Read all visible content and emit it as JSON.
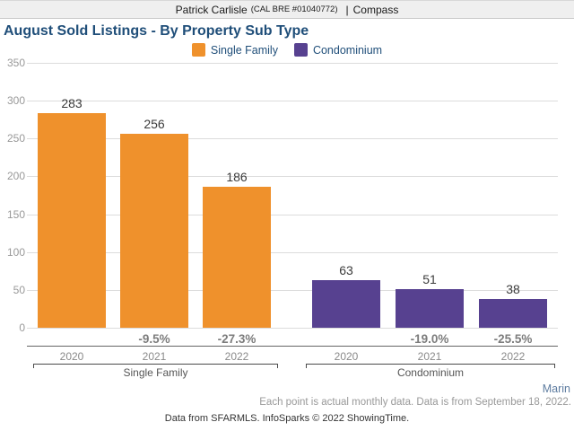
{
  "header": {
    "agent_name": "Patrick Carlisle",
    "license": "(CAL BRE #01040772)",
    "separator": "|",
    "brand": "Compass"
  },
  "title": "August Sold Listings - By Property Sub Type",
  "legend": [
    {
      "label": "Single Family",
      "color": "#ef912c"
    },
    {
      "label": "Condominium",
      "color": "#574190"
    }
  ],
  "chart_data": {
    "type": "bar",
    "title": "August Sold Listings - By Property Sub Type",
    "xlabel": "",
    "ylabel": "",
    "ylim": [
      0,
      350
    ],
    "ytick_step": 50,
    "grid": true,
    "legend_position": "top-center",
    "categories": [
      "2020",
      "2021",
      "2022"
    ],
    "series": [
      {
        "name": "Single Family",
        "color": "#ef912c",
        "values": [
          283,
          256,
          186
        ],
        "pct_change": [
          "",
          "-9.5%",
          "-27.3%"
        ]
      },
      {
        "name": "Condominium",
        "color": "#574190",
        "values": [
          63,
          51,
          38
        ],
        "pct_change": [
          "",
          "-19.0%",
          "-25.5%"
        ]
      }
    ]
  },
  "footer": {
    "region": "Marin",
    "note": "Each point is actual monthly data. Data is from September 18, 2022.",
    "attribution": "Data from SFARMLS. InfoSparks © 2022 ShowingTime."
  }
}
